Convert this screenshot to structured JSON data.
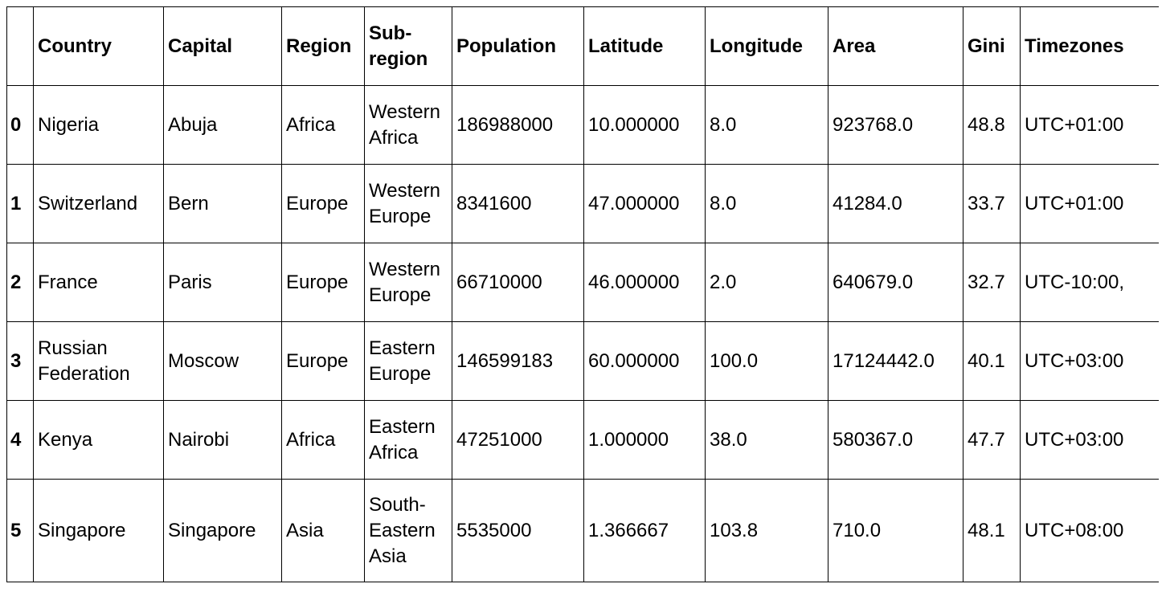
{
  "table": {
    "columns": [
      "",
      "Country",
      "Capital",
      "Region",
      "Sub-region",
      "Population",
      "Latitude",
      "Longitude",
      "Area",
      "Gini",
      "Timezones"
    ],
    "rows": [
      {
        "index": "0",
        "country": "Nigeria",
        "capital": "Abuja",
        "region": "Africa",
        "subregion": "Western Africa",
        "population": "186988000",
        "latitude": "10.000000",
        "longitude": "8.0",
        "area": "923768.0",
        "gini": "48.8",
        "timezones": "UTC+01:00"
      },
      {
        "index": "1",
        "country": "Switzerland",
        "capital": "Bern",
        "region": "Europe",
        "subregion": "Western Europe",
        "population": "8341600",
        "latitude": "47.000000",
        "longitude": "8.0",
        "area": "41284.0",
        "gini": "33.7",
        "timezones": "UTC+01:00"
      },
      {
        "index": "2",
        "country": "France",
        "capital": "Paris",
        "region": "Europe",
        "subregion": "Western Europe",
        "population": "66710000",
        "latitude": "46.000000",
        "longitude": "2.0",
        "area": "640679.0",
        "gini": "32.7",
        "timezones": "UTC-10:00,"
      },
      {
        "index": "3",
        "country": "Russian Federation",
        "capital": "Moscow",
        "region": "Europe",
        "subregion": "Eastern Europe",
        "population": "146599183",
        "latitude": "60.000000",
        "longitude": "100.0",
        "area": "17124442.0",
        "gini": "40.1",
        "timezones": "UTC+03:00"
      },
      {
        "index": "4",
        "country": "Kenya",
        "capital": "Nairobi",
        "region": "Africa",
        "subregion": "Eastern Africa",
        "population": "47251000",
        "latitude": "1.000000",
        "longitude": "38.0",
        "area": "580367.0",
        "gini": "47.7",
        "timezones": "UTC+03:00"
      },
      {
        "index": "5",
        "country": "Singapore",
        "capital": "Singapore",
        "region": "Asia",
        "subregion": "South-Eastern Asia",
        "population": "5535000",
        "latitude": "1.366667",
        "longitude": "103.8",
        "area": "710.0",
        "gini": "48.1",
        "timezones": "UTC+08:00"
      }
    ]
  }
}
